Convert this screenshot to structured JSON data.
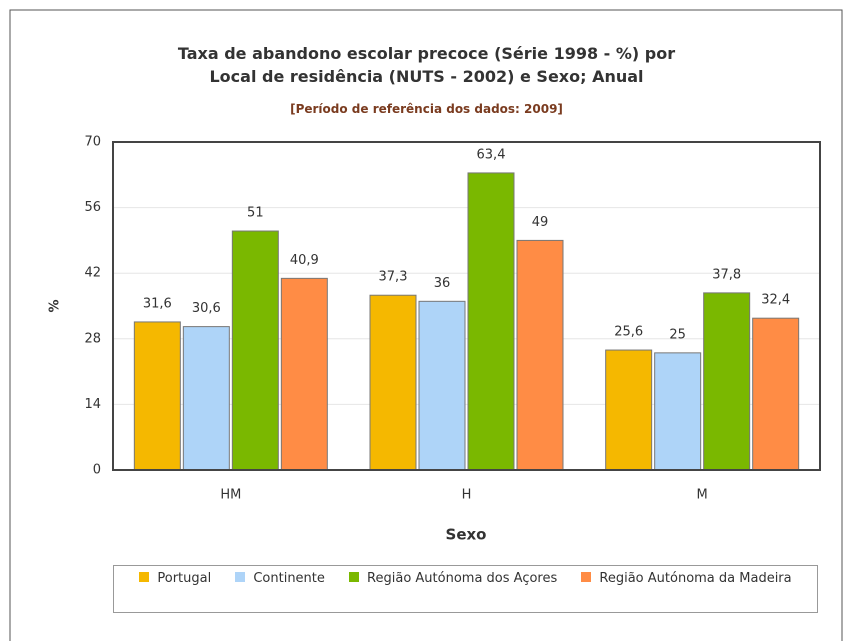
{
  "chart_data": {
    "type": "bar",
    "title": "Taxa de abandono escolar precoce (Série 1998 - %) por Local de residência (NUTS - 2002) e Sexo; Anual",
    "subtitle": "[Período de referência dos dados: 2009]",
    "x_label": "Sexo",
    "y_label": "%",
    "categories": [
      "HM",
      "H",
      "M"
    ],
    "series": [
      {
        "name": "Portugal",
        "color": "#f5b800",
        "values": [
          31.6,
          37.3,
          25.6
        ],
        "value_labels": [
          "31,6",
          "37,3",
          "25,6"
        ]
      },
      {
        "name": "Continente",
        "color": "#aed4f8",
        "values": [
          30.6,
          36,
          25
        ],
        "value_labels": [
          "30,6",
          "36",
          "25"
        ]
      },
      {
        "name": "Região Autónoma dos Açores",
        "color": "#7ab800",
        "values": [
          51,
          63.4,
          37.8
        ],
        "value_labels": [
          "51",
          "63,4",
          "37,8"
        ]
      },
      {
        "name": "Região Autónoma da Madeira",
        "color": "#ff8c45",
        "values": [
          40.9,
          49,
          32.4
        ],
        "value_labels": [
          "40,9",
          "49",
          "32,4"
        ]
      }
    ],
    "ylim": [
      0,
      70
    ],
    "yticks": [
      0,
      14,
      28,
      42,
      56,
      70
    ],
    "grid": true
  }
}
